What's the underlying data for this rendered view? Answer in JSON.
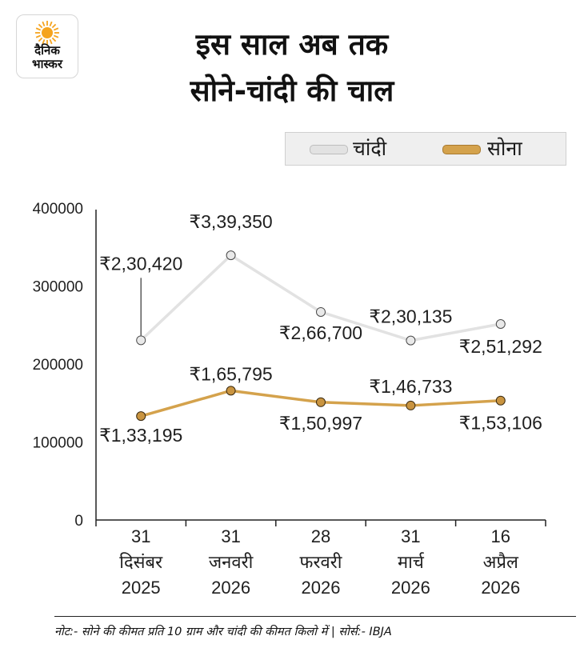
{
  "brand": {
    "line1": "दैनिक",
    "line2": "भास्कर",
    "icon": "sun-icon",
    "color": "#f5a41f"
  },
  "title": {
    "line1": "इस साल अब तक",
    "line2": "सोने-चांदी की चाल"
  },
  "legend": {
    "silver": "चांदी",
    "gold": "सोना"
  },
  "colors": {
    "silver_line": "#e2e2e2",
    "silver_marker": "#e9e9e9",
    "gold_line": "#d4a24c",
    "gold_marker": "#c99440",
    "axis": "#222222"
  },
  "chart_data": {
    "type": "line",
    "categories": [
      [
        "31",
        "दिसंबर",
        "2025"
      ],
      [
        "31",
        "जनवरी",
        "2026"
      ],
      [
        "28",
        "फरवरी",
        "2026"
      ],
      [
        "31",
        "मार्च",
        "2026"
      ],
      [
        "16",
        "अप्रैल",
        "2026"
      ]
    ],
    "series": [
      {
        "name": "चांदी",
        "values": [
          230420,
          339350,
          266700,
          230135,
          251292
        ],
        "labels": [
          "₹2,30,420",
          "₹3,39,350",
          "₹2,66,700",
          "₹2,30,135",
          "₹2,51,292"
        ]
      },
      {
        "name": "सोना",
        "values": [
          133195,
          165795,
          150997,
          146733,
          153106
        ],
        "labels": [
          "₹1,33,195",
          "₹1,65,795",
          "₹1,50,997",
          "₹1,46,733",
          "₹1,53,106"
        ]
      }
    ],
    "yticks": [
      "400000",
      "300000",
      "200000",
      "100000",
      "0"
    ],
    "ylim": [
      0,
      400000
    ],
    "grid": false,
    "legend_position": "top-right"
  },
  "note": "नोट:- सोने की कीमत प्रति 10 ग्राम और चांदी की कीमत किलो में | सोर्स:- IBJA"
}
